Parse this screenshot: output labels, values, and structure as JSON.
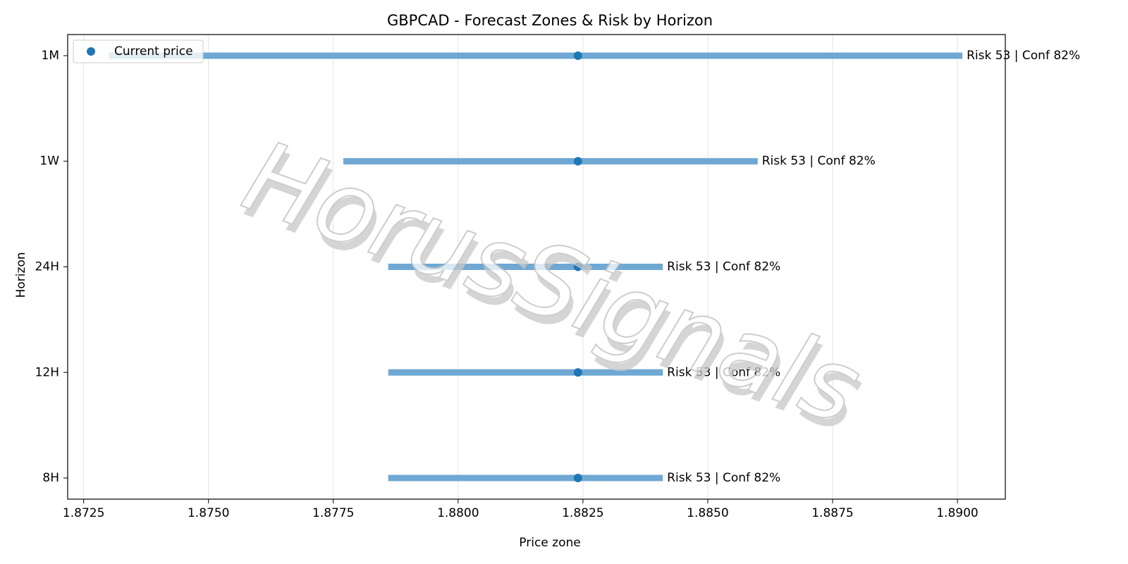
{
  "chart_data": {
    "type": "range",
    "title": "GBPCAD - Forecast Zones & Risk by Horizon",
    "xlabel": "Price zone",
    "ylabel": "Horizon",
    "watermark": "HorusSignals",
    "categories": [
      "1M",
      "1W",
      "24H",
      "12H",
      "8H"
    ],
    "zones": {
      "color": "#6fa8d3",
      "low": [
        1.873,
        1.8777,
        1.8786,
        1.8786,
        1.8786
      ],
      "high": [
        1.8901,
        1.886,
        1.8841,
        1.8841,
        1.8841
      ]
    },
    "series": [
      {
        "name": "Current price",
        "color": "#1f77b4",
        "values": [
          1.8824,
          1.8824,
          1.8824,
          1.8824,
          1.8824
        ]
      }
    ],
    "annotations": [
      "Risk 53 | Conf 82%",
      "Risk 53 | Conf 82%",
      "Risk 53 | Conf 82%",
      "Risk 53 | Conf 82%",
      "Risk 53 | Conf 82%"
    ],
    "xlim": [
      1.87218,
      1.89096
    ],
    "xticks": [
      1.8725,
      {
        "value": 1.875,
        "label": "1.8750"
      },
      1.8775,
      {
        "value": 1.88,
        "label": "1.8800"
      },
      1.8825,
      {
        "value": 1.885,
        "label": "1.8850"
      },
      1.8875,
      {
        "value": 1.89,
        "label": "1.8900"
      }
    ],
    "grid": true,
    "legend": "upper left"
  }
}
